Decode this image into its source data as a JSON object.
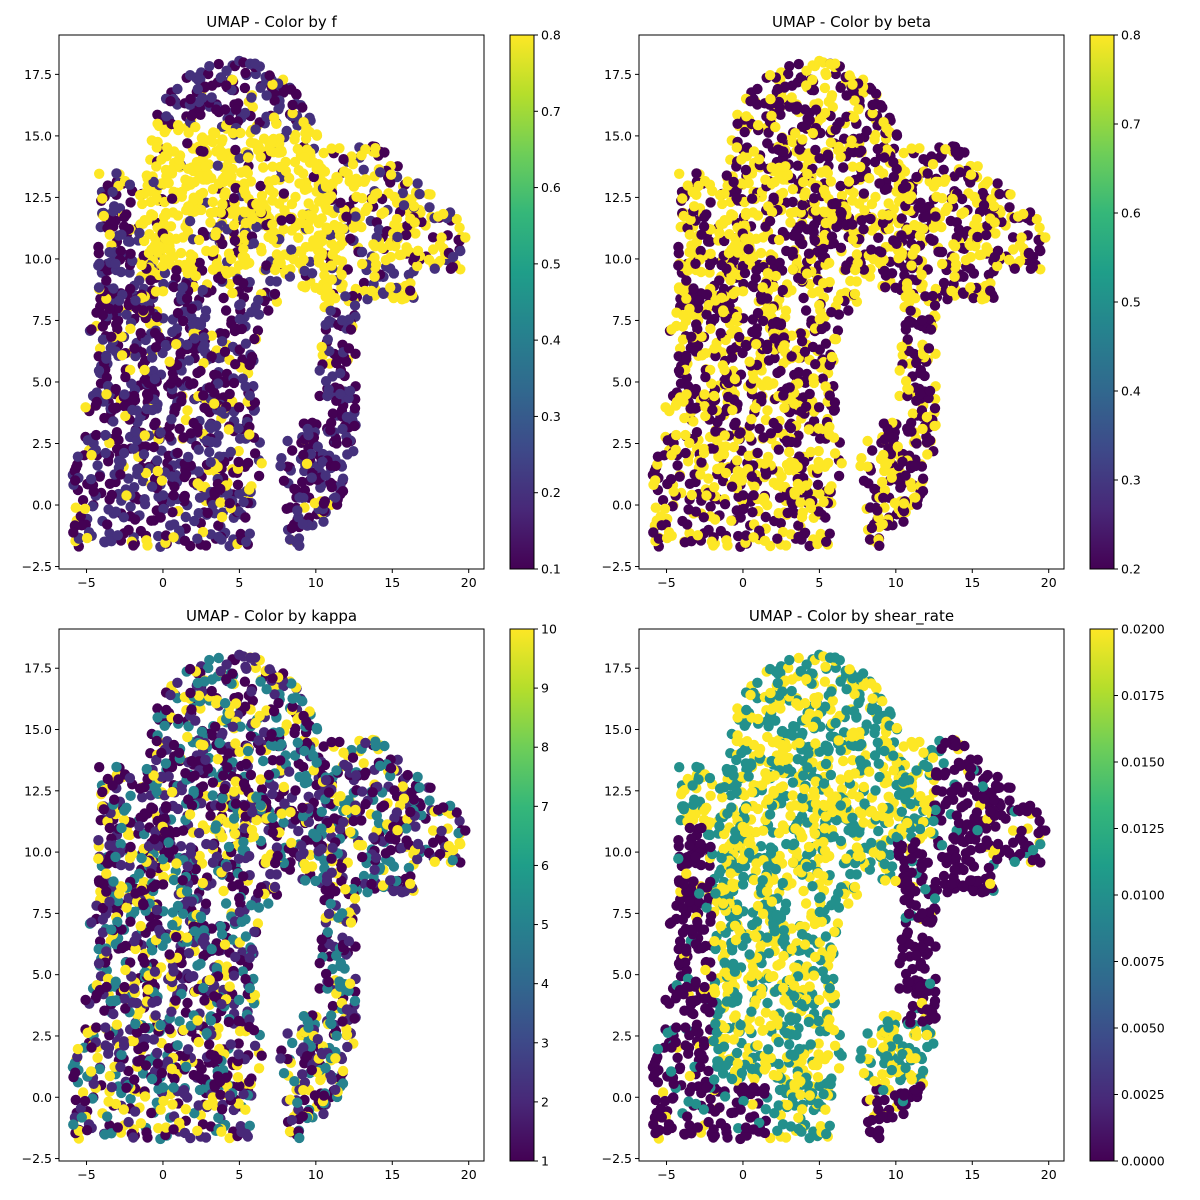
{
  "colormap": {
    "name": "viridis",
    "stops": [
      "#440154",
      "#482878",
      "#3e4989",
      "#31688e",
      "#26828e",
      "#1f9e89",
      "#35b779",
      "#6ece58",
      "#b5de2b",
      "#fde725"
    ]
  },
  "chart_data": [
    {
      "type": "scatter",
      "title": "UMAP - Color by f",
      "color_variable": "f",
      "xlim": [
        -6.8,
        21.0
      ],
      "ylim": [
        -2.6,
        19.1
      ],
      "x_ticks": [
        -5,
        0,
        5,
        10,
        15,
        20
      ],
      "y_ticks": [
        -2.5,
        0.0,
        2.5,
        5.0,
        7.5,
        10.0,
        12.5,
        15.0,
        17.5
      ],
      "x_tick_labels": [
        "−5",
        "0",
        "5",
        "10",
        "15",
        "20"
      ],
      "y_tick_labels": [
        "−2.5",
        "0.0",
        "2.5",
        "5.0",
        "7.5",
        "10.0",
        "12.5",
        "15.0",
        "17.5"
      ],
      "colorbar": {
        "min": 0.1,
        "max": 0.8,
        "ticks": [
          0.1,
          0.2,
          0.3,
          0.4,
          0.5,
          0.6,
          0.7,
          0.8
        ],
        "tick_labels": [
          "0.1",
          "0.2",
          "0.3",
          "0.4",
          "0.5",
          "0.6",
          "0.7",
          "0.8"
        ]
      },
      "color_values": [
        0.1,
        0.2,
        0.8
      ],
      "color_pattern": "f"
    },
    {
      "type": "scatter",
      "title": "UMAP - Color by beta",
      "color_variable": "beta",
      "xlim": [
        -6.8,
        21.0
      ],
      "ylim": [
        -2.6,
        19.1
      ],
      "x_ticks": [
        -5,
        0,
        5,
        10,
        15,
        20
      ],
      "y_ticks": [
        -2.5,
        0.0,
        2.5,
        5.0,
        7.5,
        10.0,
        12.5,
        15.0,
        17.5
      ],
      "x_tick_labels": [
        "−5",
        "0",
        "5",
        "10",
        "15",
        "20"
      ],
      "y_tick_labels": [
        "−2.5",
        "0.0",
        "2.5",
        "5.0",
        "7.5",
        "10.0",
        "12.5",
        "15.0",
        "17.5"
      ],
      "colorbar": {
        "min": 0.2,
        "max": 0.8,
        "ticks": [
          0.2,
          0.3,
          0.4,
          0.5,
          0.6,
          0.7,
          0.8
        ],
        "tick_labels": [
          "0.2",
          "0.3",
          "0.4",
          "0.5",
          "0.6",
          "0.7",
          "0.8"
        ]
      },
      "color_values": [
        0.2,
        0.8
      ],
      "color_pattern": "beta"
    },
    {
      "type": "scatter",
      "title": "UMAP - Color by kappa",
      "color_variable": "kappa",
      "xlim": [
        -6.8,
        21.0
      ],
      "ylim": [
        -2.6,
        19.1
      ],
      "x_ticks": [
        -5,
        0,
        5,
        10,
        15,
        20
      ],
      "y_ticks": [
        -2.5,
        0.0,
        2.5,
        5.0,
        7.5,
        10.0,
        12.5,
        15.0,
        17.5
      ],
      "x_tick_labels": [
        "−5",
        "0",
        "5",
        "10",
        "15",
        "20"
      ],
      "y_tick_labels": [
        "−2.5",
        "0.0",
        "2.5",
        "5.0",
        "7.5",
        "10.0",
        "12.5",
        "15.0",
        "17.5"
      ],
      "colorbar": {
        "min": 1,
        "max": 10,
        "ticks": [
          1,
          2,
          3,
          4,
          5,
          6,
          7,
          8,
          9,
          10
        ],
        "tick_labels": [
          "1",
          "2",
          "3",
          "4",
          "5",
          "6",
          "7",
          "8",
          "9",
          "10"
        ]
      },
      "color_values": [
        1,
        2,
        5,
        10
      ],
      "color_pattern": "kappa"
    },
    {
      "type": "scatter",
      "title": "UMAP - Color by shear_rate",
      "color_variable": "shear_rate",
      "xlim": [
        -6.8,
        21.0
      ],
      "ylim": [
        -2.6,
        19.1
      ],
      "x_ticks": [
        -5,
        0,
        5,
        10,
        15,
        20
      ],
      "y_ticks": [
        -2.5,
        0.0,
        2.5,
        5.0,
        7.5,
        10.0,
        12.5,
        15.0,
        17.5
      ],
      "x_tick_labels": [
        "−5",
        "0",
        "5",
        "10",
        "15",
        "20"
      ],
      "y_tick_labels": [
        "−2.5",
        "0.0",
        "2.5",
        "5.0",
        "7.5",
        "10.0",
        "12.5",
        "15.0",
        "17.5"
      ],
      "colorbar": {
        "min": 0.0,
        "max": 0.02,
        "ticks": [
          0.0,
          0.0025,
          0.005,
          0.0075,
          0.01,
          0.0125,
          0.015,
          0.0175,
          0.02
        ],
        "tick_labels": [
          "0.0000",
          "0.0025",
          "0.0050",
          "0.0075",
          "0.0100",
          "0.0125",
          "0.0150",
          "0.0175",
          "0.0200"
        ]
      },
      "color_values": [
        0.0,
        0.01,
        0.02
      ],
      "color_pattern": "shear_rate"
    }
  ]
}
